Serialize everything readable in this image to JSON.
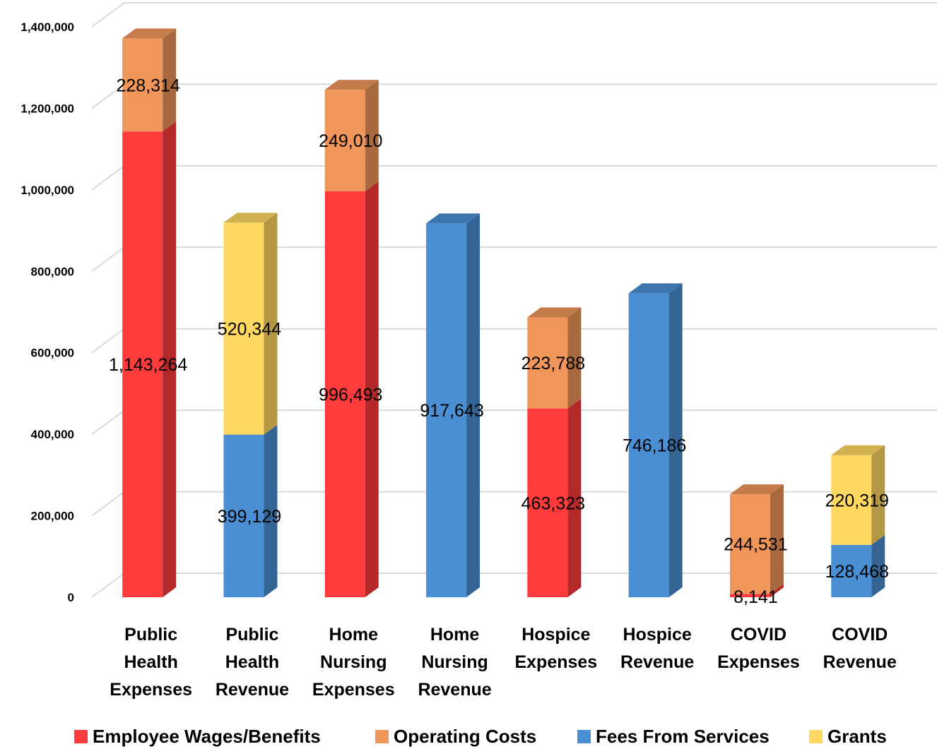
{
  "chart_data": {
    "type": "bar",
    "stacked": true,
    "three_d": true,
    "title": "",
    "xlabel": "",
    "ylabel": "",
    "ylim": [
      0,
      1400000
    ],
    "y_ticks": [
      "0",
      "200,000",
      "400,000",
      "600,000",
      "800,000",
      "1,000,000",
      "1,200,000",
      "1,400,000"
    ],
    "grid": true,
    "legend_position": "bottom",
    "categories": [
      [
        "Public",
        "Health",
        "Expenses"
      ],
      [
        "Public",
        "Health",
        "Revenue"
      ],
      [
        "Home",
        "Nursing",
        "Expenses"
      ],
      [
        "Home",
        "Nursing",
        "Revenue"
      ],
      [
        "Hospice",
        "Expenses"
      ],
      [
        "Hospice",
        "Revenue"
      ],
      [
        "COVID",
        "Expenses"
      ],
      [
        "COVID",
        "Revenue"
      ]
    ],
    "series": [
      {
        "name": "Employee Wages/Benefits",
        "color": "#ff3b3b",
        "values": [
          1143264,
          null,
          996493,
          null,
          463323,
          null,
          8141,
          null
        ],
        "labels": [
          "1,143,264",
          "",
          "996,493",
          "",
          "463,323",
          "",
          "8,141",
          ""
        ]
      },
      {
        "name": "Operating Costs",
        "color": "#f0965a",
        "values": [
          228314,
          null,
          249010,
          null,
          223788,
          null,
          244531,
          null
        ],
        "labels": [
          "228,314",
          "",
          "249,010",
          "",
          "223,788",
          "",
          "244,531",
          ""
        ]
      },
      {
        "name": "Fees From Services",
        "color": "#4a8fd4",
        "values": [
          null,
          399129,
          null,
          917643,
          null,
          746186,
          null,
          128468
        ],
        "labels": [
          "",
          "399,129",
          "",
          "917,643",
          "",
          "746,186",
          "",
          "128,468"
        ]
      },
      {
        "name": "Grants",
        "color": "#ffd862",
        "values": [
          null,
          520344,
          null,
          null,
          null,
          null,
          null,
          220319
        ],
        "labels": [
          "",
          "520,344",
          "",
          "",
          "",
          "",
          "",
          "220,319"
        ]
      }
    ]
  }
}
